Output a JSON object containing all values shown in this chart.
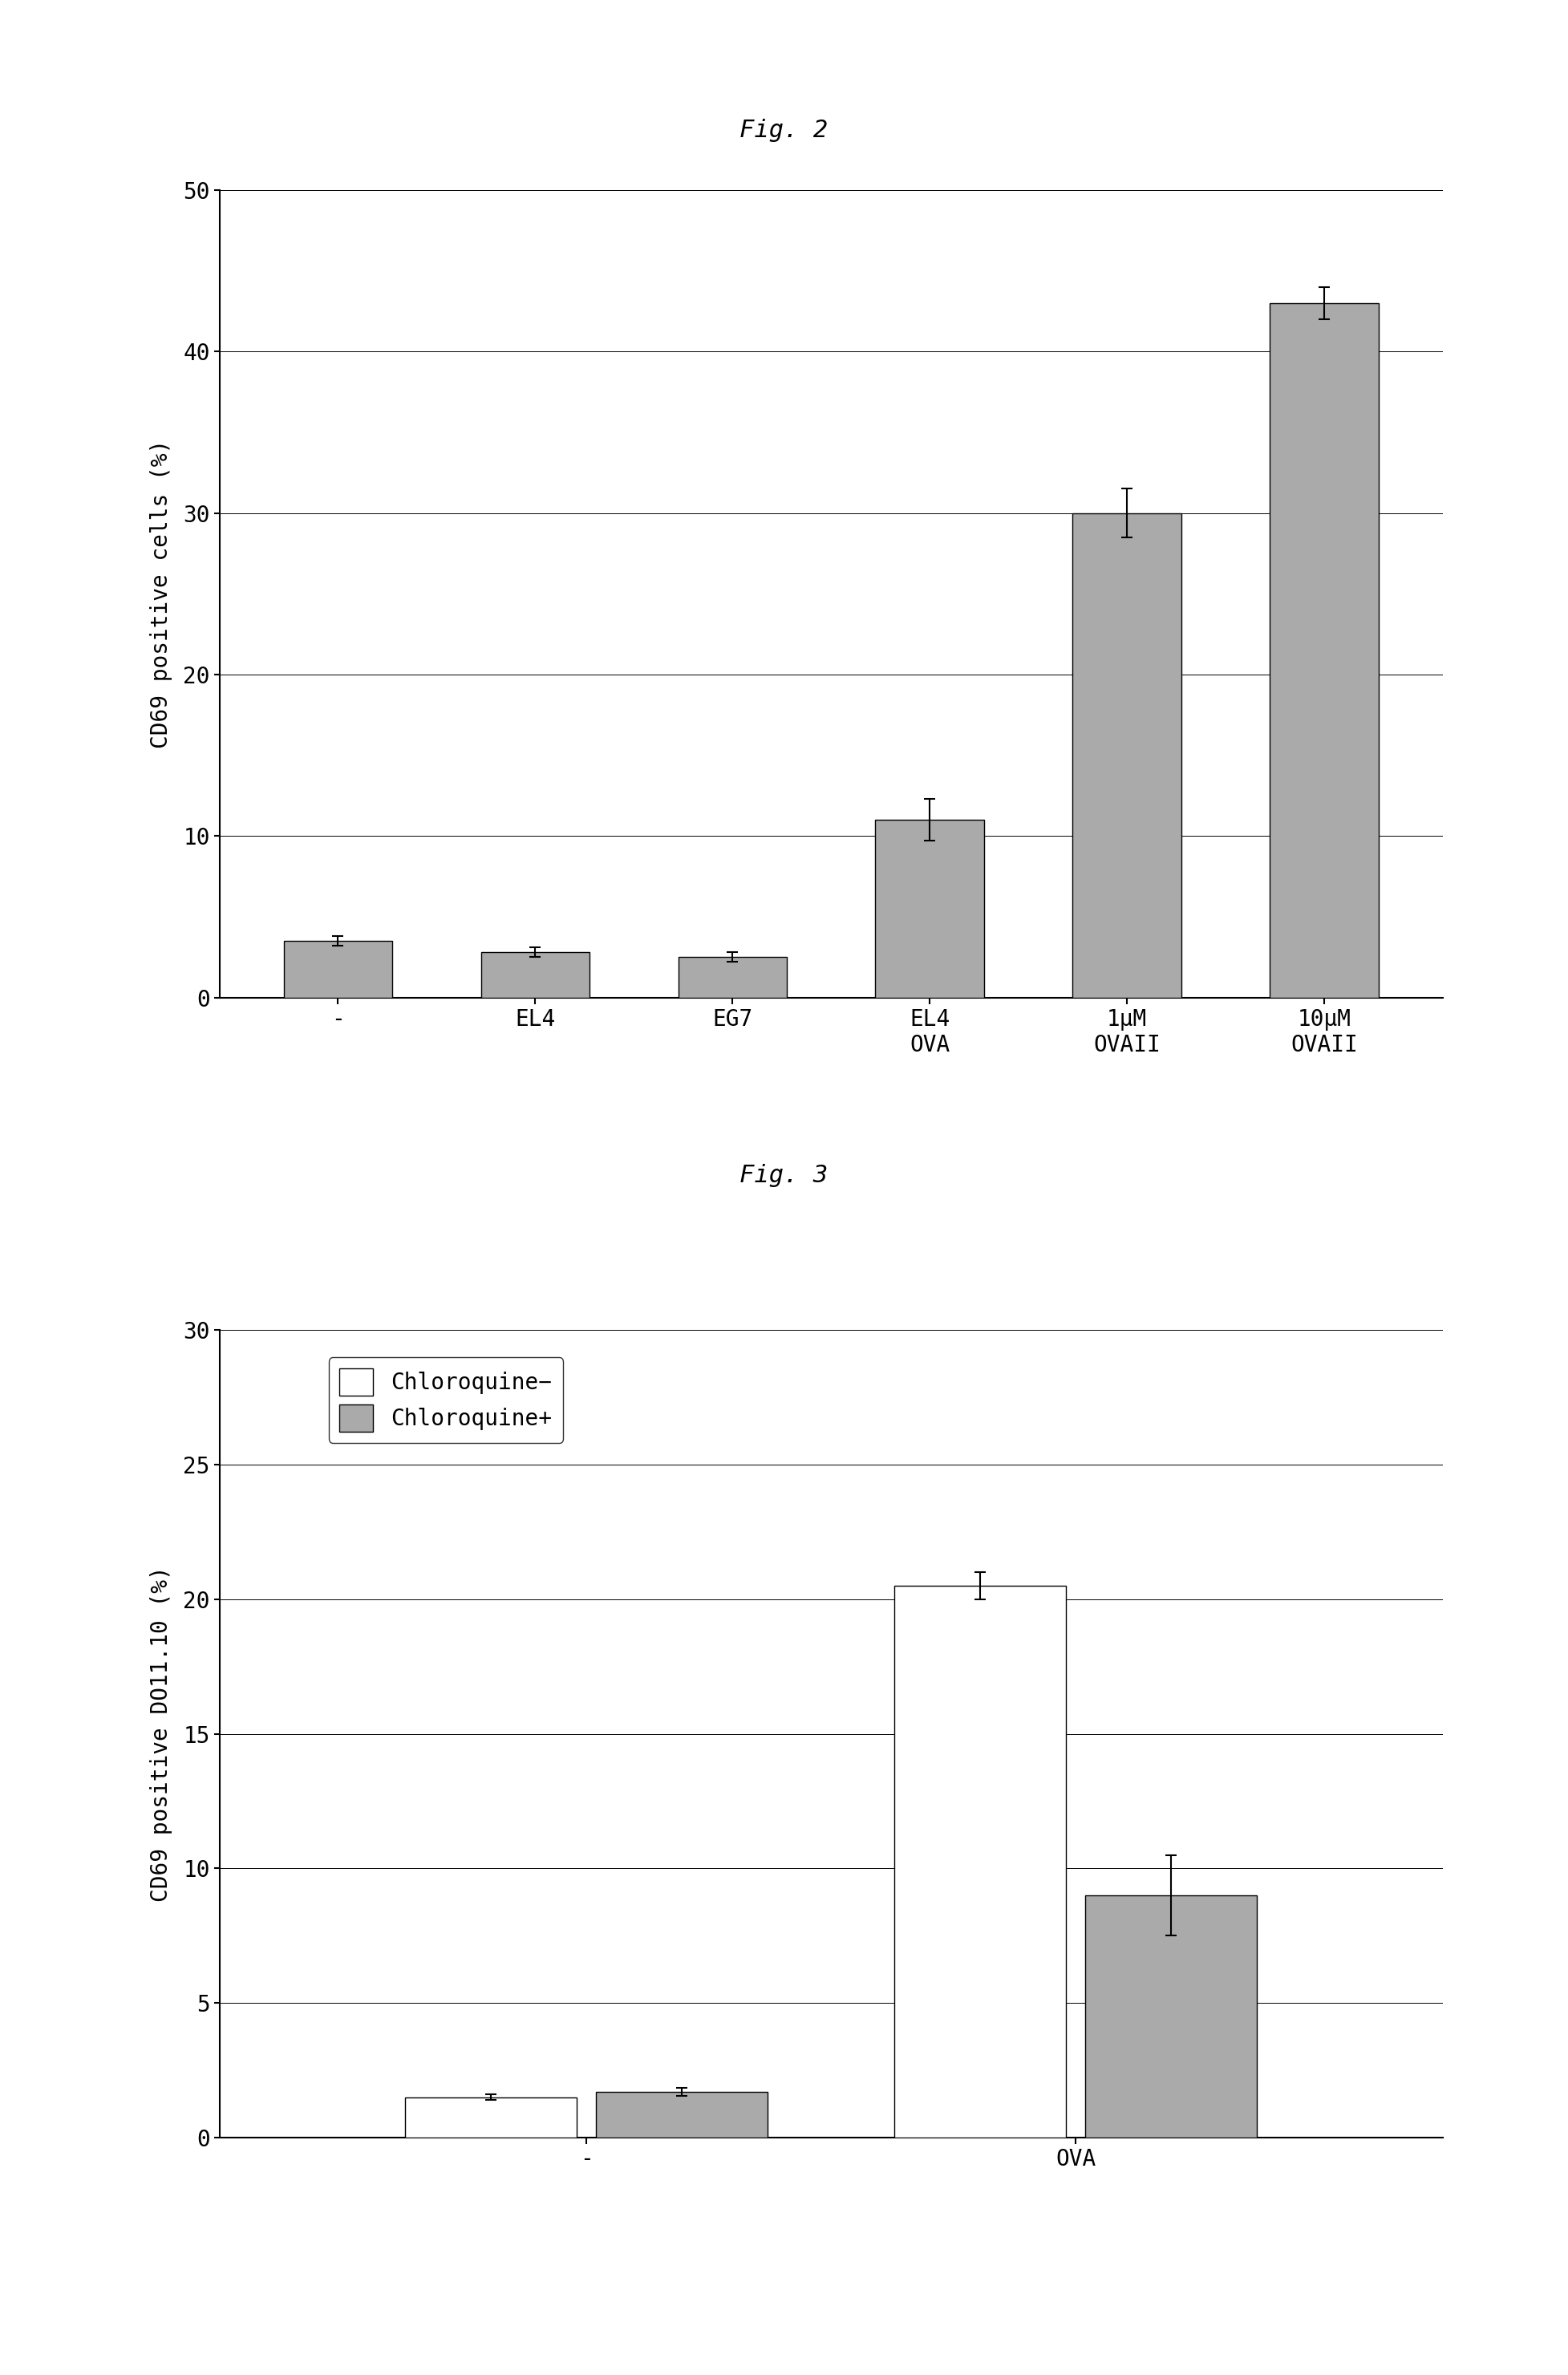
{
  "fig2": {
    "title": "Fig. 2",
    "ylabel": "CD69 positive cells (%)",
    "categories": [
      "-",
      "EL4",
      "EG7",
      "EL4\nOVA",
      "1μM\nOVAII",
      "10μM\nOVAII"
    ],
    "values": [
      3.5,
      2.8,
      2.5,
      11.0,
      30.0,
      43.0
    ],
    "errors": [
      0.3,
      0.3,
      0.3,
      1.3,
      1.5,
      1.0
    ],
    "bar_color": "#aaaaaa",
    "ylim": [
      0,
      50
    ],
    "yticks": [
      0,
      10,
      20,
      30,
      40,
      50
    ]
  },
  "fig3": {
    "title": "Fig. 3",
    "ylabel": "CD69 positive DO11.10 (%)",
    "categories": [
      "-",
      "OVA"
    ],
    "values_white": [
      1.5,
      20.5
    ],
    "values_dark": [
      1.7,
      9.0
    ],
    "errors_white": [
      0.1,
      0.5
    ],
    "errors_dark": [
      0.15,
      1.5
    ],
    "bar_color_white": "#ffffff",
    "bar_color_dark": "#aaaaaa",
    "legend_labels": [
      "Chloroquine−",
      "Chloroquine+"
    ],
    "ylim": [
      0,
      30
    ],
    "yticks": [
      0,
      5,
      10,
      15,
      20,
      25,
      30
    ]
  },
  "background_color": "#ffffff",
  "font_family": "DejaVu Sans Mono",
  "title_fontsize": 22,
  "label_fontsize": 20,
  "tick_fontsize": 20,
  "legend_fontsize": 20
}
